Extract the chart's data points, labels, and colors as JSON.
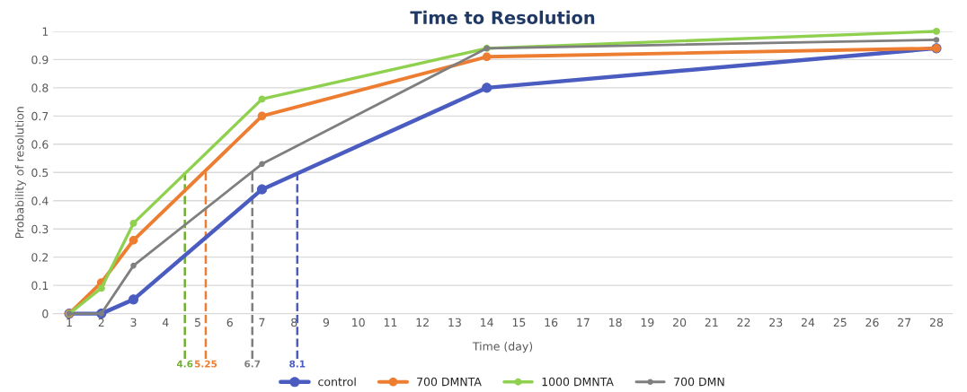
{
  "chart_data": {
    "type": "line",
    "title": "Time to Resolution",
    "xlabel": "Time (day)",
    "ylabel": "Probability of resolution",
    "x": [
      1,
      2,
      3,
      7,
      14,
      28
    ],
    "series": [
      {
        "name": "control",
        "color": "#4a5cc0",
        "values": [
          0,
          0,
          0.05,
          0.44,
          0.8,
          0.94
        ]
      },
      {
        "name": "700 DMNTA",
        "color": "#ed7d31",
        "values": [
          0,
          0.11,
          0.26,
          0.7,
          0.91,
          0.94
        ]
      },
      {
        "name": "1000 DMNTA",
        "color": "#8fd14f",
        "values": [
          0,
          0.09,
          0.32,
          0.76,
          0.94,
          1.0
        ]
      },
      {
        "name": "700 DMN",
        "color": "#7f7f7f",
        "values": [
          0,
          0,
          0.17,
          0.53,
          0.94,
          0.97
        ]
      }
    ],
    "xlim": [
      0.5,
      28.5
    ],
    "xticks": [
      1,
      2,
      3,
      4,
      5,
      6,
      7,
      8,
      9,
      10,
      11,
      12,
      13,
      14,
      15,
      16,
      17,
      18,
      19,
      20,
      21,
      22,
      23,
      24,
      25,
      26,
      27,
      28
    ],
    "ylim": [
      0,
      1
    ],
    "yticks": [
      0,
      0.1,
      0.2,
      0.3,
      0.4,
      0.5,
      0.6,
      0.7,
      0.8,
      0.9,
      1
    ],
    "ref_lines": [
      {
        "axis": "x",
        "value": 4.6,
        "label": "4.6",
        "color": "#70b030",
        "line_style": "dashed"
      },
      {
        "axis": "x",
        "value": 5.25,
        "label": "5.25",
        "color": "#ed7d31",
        "line_style": "dashed"
      },
      {
        "axis": "x",
        "value": 6.7,
        "label": "6.7",
        "color": "#7f7f7f",
        "line_style": "dashed"
      },
      {
        "axis": "x",
        "value": 8.1,
        "label": "8.1",
        "color": "#4a5cc0",
        "line_style": "dashed"
      }
    ],
    "grid": "y",
    "legend": "bottom",
    "marker": "circle",
    "line_style": "solid"
  }
}
